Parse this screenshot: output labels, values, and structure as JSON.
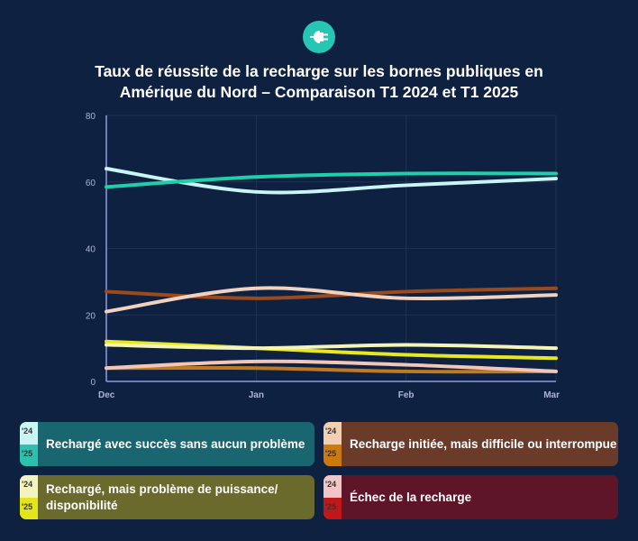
{
  "logo": {
    "icon": "ev-plug-icon",
    "color": "#27c6b4"
  },
  "chart_data": {
    "type": "line",
    "title": "Taux de réussite de la recharge sur les bornes publiques en Amérique du Nord – Comparaison T1 2024 et T1 2025",
    "title_lines": [
      "Taux de réussite de la recharge sur les bornes publiques en",
      "Amérique du Nord – Comparaison T1 2024 et T1 2025"
    ],
    "categories": [
      "Dec",
      "Jan",
      "Feb",
      "Mar"
    ],
    "ylim": [
      0,
      80
    ],
    "yticks": [
      "0",
      "20",
      "40",
      "60",
      "80"
    ],
    "grid": true,
    "legend_placement": "bottom",
    "series": [
      {
        "id": "success24",
        "color": "#c9f6f4",
        "values": [
          64,
          57,
          59,
          61
        ]
      },
      {
        "id": "success25",
        "color": "#1fcfaa",
        "values": [
          58.5,
          61.5,
          62.5,
          62.5
        ]
      },
      {
        "id": "difficult25",
        "color": "#9a4a1c",
        "values": [
          27,
          25,
          27,
          28
        ]
      },
      {
        "id": "difficult24",
        "color": "#f0d2c0",
        "values": [
          21,
          28,
          25,
          26
        ]
      },
      {
        "id": "power25",
        "color": "#e8e81e",
        "values": [
          12,
          10,
          8,
          7
        ]
      },
      {
        "id": "power24",
        "color": "#f4f4b8",
        "values": [
          11,
          10,
          11,
          10
        ]
      },
      {
        "id": "failure25",
        "color": "#c07a20",
        "values": [
          4,
          4,
          3,
          3
        ]
      },
      {
        "id": "failure24",
        "color": "#f2c6b8",
        "values": [
          4,
          6,
          5,
          3
        ]
      }
    ]
  },
  "legend": [
    {
      "label": "Rechargé avec succès sans aucun problème",
      "y24": "'24",
      "y25": "'25",
      "bg": "#1a6670",
      "c24": "#c9f6f4",
      "c25": "#2fbfae"
    },
    {
      "label": "Recharge initiée, mais difficile ou interrompue",
      "y24": "'24",
      "y25": "'25",
      "bg": "#6b3b2a",
      "c24": "#f2cfb0",
      "c25": "#cc7a10"
    },
    {
      "label": "Rechargé, mais problème de puissance/ disponibilité",
      "y24": "'24",
      "y25": "'25",
      "bg": "#6a6a2c",
      "c24": "#f4f2c0",
      "c25": "#e4e41a"
    },
    {
      "label": "Échec de la recharge",
      "y24": "'24",
      "y25": "'25",
      "bg": "#5e1528",
      "c24": "#f2c6c6",
      "c25": "#c01818"
    }
  ]
}
